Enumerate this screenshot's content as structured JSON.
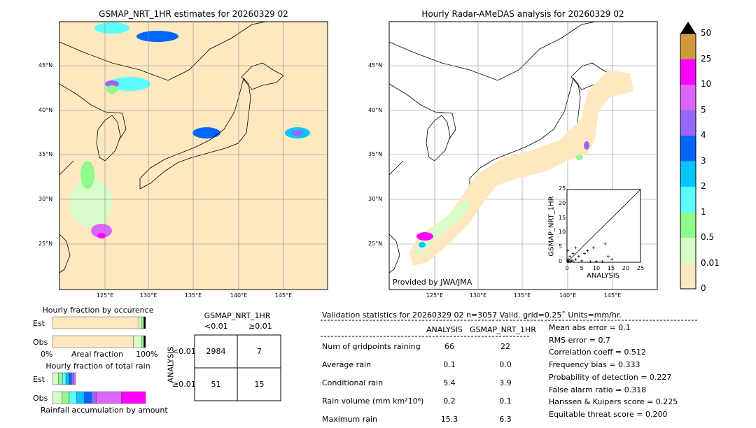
{
  "chart_data": [
    {
      "type": "map",
      "title": "GSMAP_NRT_1HR estimates for 20260329 02",
      "lat_ticks": [
        "45°N",
        "40°N",
        "35°N",
        "30°N",
        "25°N"
      ],
      "lon_ticks": [
        "125°E",
        "130°E",
        "135°E",
        "140°E",
        "145°E"
      ]
    },
    {
      "type": "map",
      "title": "Hourly Radar-AMeDAS analysis for 20260329 02",
      "lat_ticks": [
        "45°N",
        "40°N",
        "35°N",
        "30°N",
        "25°N"
      ],
      "lon_ticks": [
        "125°E",
        "130°E",
        "135°E",
        "140°E",
        "145°E"
      ],
      "credit": "Provided by JWA/JMA"
    },
    {
      "type": "scatter",
      "xlabel": "ANALYSIS",
      "ylabel": "GSMAP_NRT_1HR",
      "xlim": [
        0,
        25
      ],
      "ylim": [
        0,
        25
      ],
      "ticks": [
        "0",
        "5",
        "10",
        "15",
        "20",
        "25"
      ],
      "points": [
        [
          0.2,
          0.5
        ],
        [
          0.5,
          1
        ],
        [
          1,
          2
        ],
        [
          0.3,
          4
        ],
        [
          1,
          0.3
        ],
        [
          2,
          0.5
        ],
        [
          3,
          1
        ],
        [
          4,
          2
        ],
        [
          5,
          0.5
        ],
        [
          6,
          3
        ],
        [
          7,
          4
        ],
        [
          8,
          0.2
        ],
        [
          9,
          5
        ],
        [
          10,
          0.3
        ],
        [
          12,
          0.2
        ],
        [
          13,
          6.3
        ],
        [
          14,
          2
        ],
        [
          15.3,
          1
        ],
        [
          2,
          3
        ],
        [
          3,
          5
        ],
        [
          0.5,
          0.2
        ],
        [
          1.5,
          0.5
        ]
      ]
    },
    {
      "type": "colorbar",
      "levels": [
        "0",
        "0.01",
        "0.5",
        "1",
        "2",
        "3",
        "4",
        "5",
        "10",
        "25",
        "50"
      ],
      "colors": [
        "#fde8c0",
        "#d8fcca",
        "#8efb8a",
        "#5dfcfc",
        "#00c6fc",
        "#0066fc",
        "#9966fc",
        "#dc66fc",
        "#fc00fc",
        "#cf9a3c"
      ]
    },
    {
      "type": "bar",
      "title": "Hourly fraction by occurence",
      "rows": [
        "Est",
        "Obs"
      ],
      "xlabel": "Areal fraction",
      "xmin_label": "0%",
      "xmax_label": "100%",
      "est": [
        0.93,
        0.02,
        0.01
      ],
      "obs": [
        0.87,
        0.09,
        0.01
      ]
    },
    {
      "type": "bar",
      "title": "Hourly fraction of total rain",
      "rows": [
        "Est",
        "Obs"
      ],
      "xlabel": "Rainfall accumulation by amount",
      "est": [
        0.06,
        0.04,
        0.04,
        0.03,
        0.03,
        0.02,
        0.02
      ],
      "obs": [
        0.1,
        0.08,
        0.08,
        0.08,
        0.08,
        0.05,
        0.26,
        0.24
      ]
    },
    {
      "type": "table",
      "title": "GSMAP_NRT_1HR",
      "col_headers": [
        "<0.01",
        "≥0.01"
      ],
      "row_label": "ANALYSIS",
      "row_headers": [
        "<0.01",
        "≥0.01"
      ],
      "cells": [
        [
          "2984",
          "7"
        ],
        [
          "51",
          "15"
        ]
      ]
    }
  ],
  "stats": {
    "header": "Validation statistics for 20260329 02  n=3057 Valid. grid=0.25˚ Units=mm/hr.",
    "col_headers": [
      "ANALYSIS",
      "GSMAP_NRT_1HR"
    ],
    "rows": [
      {
        "label": "Num of gridpoints raining",
        "a": "66",
        "g": "22"
      },
      {
        "label": "Average rain",
        "a": "0.1",
        "g": "0.0"
      },
      {
        "label": "Conditional rain",
        "a": "5.4",
        "g": "3.9"
      },
      {
        "label": "Rain volume (mm km²10⁶)",
        "a": "0.2",
        "g": "0.1"
      },
      {
        "label": "Maximum rain",
        "a": "15.3",
        "g": "6.3"
      }
    ],
    "scores": [
      "Mean abs error =    0.1",
      "RMS error =    0.7",
      "Correlation coeff =  0.512",
      "Frequency bias =  0.333",
      "Probability of detection =  0.227",
      "False alarm ratio =  0.318",
      "Hanssen & Kuipers score =  0.225",
      "Equitable threat score =  0.200"
    ]
  }
}
